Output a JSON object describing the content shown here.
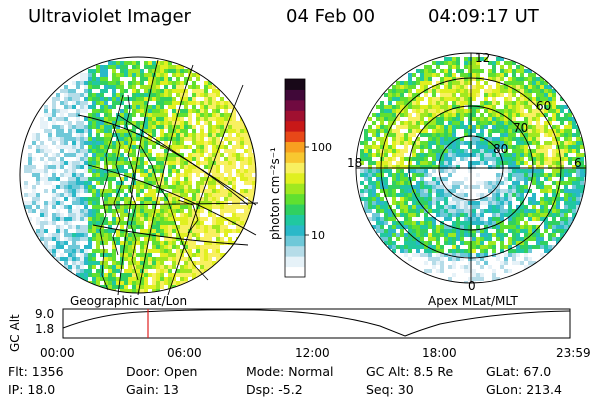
{
  "header": {
    "title": "Ultraviolet Imager",
    "date": "04 Feb 00",
    "time": "04:09:17 UT"
  },
  "geo_panel": {
    "caption": "Geographic Lat/Lon"
  },
  "apex_panel": {
    "caption": "Apex  MLat/MLT",
    "mlt_labels": {
      "top": "12",
      "left": "18",
      "right": "6",
      "bottom": "0"
    },
    "lat_labels": [
      "60",
      "70",
      "80"
    ]
  },
  "colorbar": {
    "unit_label": "photon cm⁻²s⁻¹",
    "tick_labels": [
      "100",
      "10"
    ],
    "colors": [
      "#ffffff",
      "#e6f2f8",
      "#b5dce8",
      "#6ec8d8",
      "#2ab8c8",
      "#20c8a0",
      "#30d060",
      "#60e030",
      "#a0e820",
      "#e0f020",
      "#f8f060",
      "#f8c830",
      "#f8a020",
      "#e84818",
      "#c81818",
      "#a01030",
      "#700a40",
      "#400838",
      "#180818"
    ]
  },
  "timeline": {
    "axis_label": "GC Alt",
    "y_ticks": [
      "9.0",
      "1.8"
    ],
    "x_ticks": [
      "00:00",
      "06:00",
      "12:00",
      "18:00",
      "23:59"
    ],
    "marker_time": "04:09",
    "marker_color": "#e02020"
  },
  "status": {
    "flt": {
      "label": "Flt:",
      "value": "1356"
    },
    "door": {
      "label": "Door:",
      "value": "Open"
    },
    "mode": {
      "label": "Mode:",
      "value": "Normal"
    },
    "gc_alt": {
      "label": "GC Alt:",
      "value": "8.5 Re"
    },
    "glat": {
      "label": "GLat:",
      "value": "67.0"
    },
    "ip": {
      "label": "IP:",
      "value": "18.0"
    },
    "gain": {
      "label": "Gain:",
      "value": "13"
    },
    "dsp": {
      "label": "Dsp:",
      "value": "-5.2"
    },
    "seq": {
      "label": "Seq:",
      "value": "30"
    },
    "glon": {
      "label": "GLon:",
      "value": "213.4"
    }
  }
}
